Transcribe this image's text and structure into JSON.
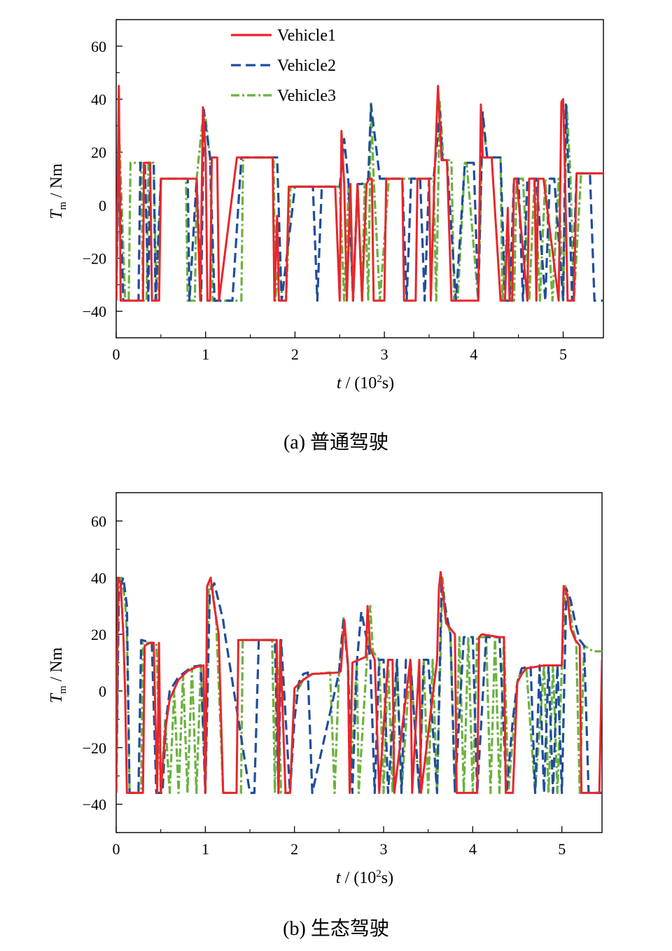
{
  "chart_data": [
    {
      "type": "line",
      "caption": "(a)  普通驾驶",
      "xlabel": {
        "var": "t",
        "unit": " / (10",
        "sup": "2",
        "tail": "s)"
      },
      "ylabel": {
        "var": "T",
        "sub": "m",
        "unit": " / Nm"
      },
      "xlim": [
        0,
        5.45
      ],
      "ylim": [
        -50,
        70
      ],
      "xticks": [
        0,
        1,
        2,
        3,
        4,
        5
      ],
      "xtick_labels": [
        "0",
        "1",
        "2",
        "3",
        "4",
        "5"
      ],
      "yticks": [
        -40,
        -20,
        0,
        20,
        40,
        60
      ],
      "ytick_labels": [
        "−40",
        "−20",
        "0",
        "20",
        "40",
        "60"
      ],
      "legend": [
        "Vehicle1",
        "Vehicle2",
        "Vehicle3"
      ],
      "series": [
        {
          "name": "Vehicle1",
          "color": "#e8262b",
          "dash": "solid",
          "x": [
            0,
            0.03,
            0.05,
            0.07,
            0.2,
            0.3,
            0.31,
            0.38,
            0.4,
            0.42,
            0.48,
            0.5,
            0.9,
            0.94,
            0.97,
            1.0,
            1.02,
            1.05,
            1.07,
            1.13,
            1.15,
            1.35,
            1.37,
            1.75,
            1.77,
            1.8,
            1.82,
            1.84,
            1.87,
            1.9,
            1.93,
            1.96,
            1.98,
            2.4,
            2.45,
            2.5,
            2.52,
            2.55,
            2.58,
            2.62,
            2.65,
            2.7,
            2.75,
            2.8,
            2.83,
            2.86,
            2.88,
            3.0,
            3.02,
            3.2,
            3.22,
            3.35,
            3.37,
            3.5,
            3.52,
            3.56,
            3.6,
            3.64,
            3.7,
            3.75,
            3.78,
            3.82,
            4.05,
            4.08,
            4.1,
            4.13,
            4.2,
            4.3,
            4.35,
            4.38,
            4.4,
            4.43,
            4.45,
            4.48,
            4.6,
            4.62,
            4.68,
            4.7,
            4.72,
            4.75,
            4.78,
            4.95,
            4.98,
            5.0,
            5.02,
            5.05,
            5.08,
            5.12,
            5.15,
            5.2,
            5.25,
            5.45
          ],
          "y": [
            -36,
            45,
            -36,
            -36,
            -36,
            -36,
            16,
            16,
            -36,
            -36,
            -36,
            10,
            10,
            -36,
            37,
            20,
            -36,
            -36,
            18,
            18,
            -36,
            18,
            18,
            18,
            -36,
            -4,
            -36,
            -36,
            -36,
            -36,
            7,
            7,
            7,
            7,
            7,
            -36,
            28,
            8,
            -36,
            8,
            -36,
            8,
            -36,
            8,
            10,
            10,
            -36,
            -36,
            10,
            10,
            -36,
            -36,
            10,
            10,
            -36,
            10,
            45,
            17,
            17,
            -36,
            -36,
            -36,
            -36,
            38,
            18,
            18,
            18,
            -36,
            -36,
            -1,
            -36,
            -36,
            10,
            10,
            -36,
            10,
            10,
            -36,
            10,
            10,
            10,
            -36,
            39,
            40,
            12,
            -36,
            -36,
            -36,
            12,
            12,
            12,
            12
          ]
        },
        {
          "name": "Vehicle2",
          "color": "#1f4e9c",
          "dash": "14,7",
          "x": [
            0,
            0.03,
            0.08,
            0.25,
            0.27,
            0.32,
            0.36,
            0.38,
            0.42,
            0.44,
            0.5,
            0.8,
            0.82,
            0.9,
            0.95,
            0.98,
            1.0,
            1.05,
            1.1,
            1.3,
            1.4,
            1.5,
            1.8,
            1.85,
            2.0,
            2.2,
            2.25,
            2.3,
            2.35,
            2.5,
            2.55,
            2.6,
            2.65,
            2.7,
            2.75,
            2.82,
            2.85,
            2.95,
            3.05,
            3.2,
            3.25,
            3.3,
            3.4,
            3.45,
            3.5,
            3.55,
            3.62,
            3.65,
            3.7,
            3.8,
            3.9,
            4.0,
            4.05,
            4.1,
            4.15,
            4.3,
            4.35,
            4.4,
            4.45,
            4.5,
            4.55,
            4.6,
            4.7,
            4.8,
            4.85,
            4.9,
            5.0,
            5.03,
            5.06,
            5.1,
            5.15,
            5.2,
            5.3,
            5.35,
            5.4,
            5.45
          ],
          "y": [
            -36,
            20,
            -36,
            -36,
            16,
            16,
            -36,
            16,
            16,
            -36,
            10,
            10,
            -36,
            10,
            -36,
            36,
            30,
            18,
            -36,
            -36,
            18,
            18,
            18,
            -36,
            7,
            7,
            -36,
            7,
            7,
            7,
            25,
            8,
            -36,
            8,
            8,
            10,
            38,
            10,
            10,
            10,
            -36,
            10,
            10,
            -36,
            10,
            10,
            35,
            17,
            17,
            -36,
            16,
            16,
            -36,
            35,
            18,
            18,
            -36,
            -36,
            10,
            10,
            -36,
            10,
            10,
            -36,
            10,
            10,
            -36,
            38,
            12,
            -36,
            12,
            12,
            12,
            -36,
            -36,
            -36
          ]
        },
        {
          "name": "Vehicle3",
          "color": "#6ab23e",
          "dash": "12,4,3,4",
          "x": [
            0,
            0.03,
            0.1,
            0.14,
            0.16,
            0.28,
            0.3,
            0.34,
            0.36,
            0.42,
            0.45,
            0.5,
            0.78,
            0.8,
            0.88,
            0.9,
            0.96,
            1.0,
            1.03,
            1.05,
            1.08,
            1.28,
            1.4,
            1.42,
            1.76,
            1.78,
            1.82,
            1.86,
            1.9,
            1.95,
            2.5,
            2.55,
            2.6,
            2.65,
            2.7,
            2.75,
            2.78,
            2.82,
            2.85,
            2.88,
            2.95,
            3.05,
            3.55,
            3.58,
            3.62,
            3.66,
            3.75,
            3.78,
            3.82,
            3.9,
            3.92,
            4.05,
            4.1,
            4.15,
            4.3,
            4.32,
            4.38,
            4.42,
            4.45,
            4.48,
            4.55,
            4.62,
            4.68,
            4.74,
            4.8,
            4.88,
            4.95,
            5.0,
            5.04,
            5.08,
            5.12,
            5.2,
            5.3,
            5.45
          ],
          "y": [
            -36,
            30,
            -36,
            -36,
            16,
            16,
            -36,
            -36,
            16,
            16,
            -36,
            10,
            10,
            -36,
            -36,
            10,
            30,
            33,
            24,
            18,
            -36,
            -36,
            -36,
            18,
            18,
            -36,
            -20,
            -36,
            -36,
            7,
            7,
            -36,
            7,
            -36,
            8,
            -36,
            8,
            -36,
            39,
            10,
            -36,
            10,
            10,
            -36,
            39,
            17,
            17,
            -36,
            -36,
            16,
            16,
            -36,
            32,
            18,
            18,
            -36,
            -5,
            -36,
            -36,
            10,
            10,
            -36,
            10,
            -36,
            10,
            -36,
            10,
            -36,
            38,
            12,
            -36,
            12,
            12,
            12
          ]
        }
      ]
    },
    {
      "type": "line",
      "caption": "(b)  生态驾驶",
      "xlabel": {
        "var": "t",
        "unit": " / (10",
        "sup": "2",
        "tail": "s)"
      },
      "ylabel": {
        "var": "T",
        "sub": "m",
        "unit": " / Nm"
      },
      "xlim": [
        0,
        5.45
      ],
      "ylim": [
        -50,
        70
      ],
      "xticks": [
        0,
        1,
        2,
        3,
        4,
        5
      ],
      "xtick_labels": [
        "0",
        "1",
        "2",
        "3",
        "4",
        "5"
      ],
      "yticks": [
        -40,
        -20,
        0,
        20,
        40,
        60
      ],
      "ytick_labels": [
        "−40",
        "−20",
        "0",
        "20",
        "40",
        "60"
      ],
      "legend": [],
      "series": [
        {
          "name": "Vehicle1",
          "color": "#e8262b",
          "dash": "solid",
          "x": [
            0,
            0.02,
            0.05,
            0.08,
            0.1,
            0.12,
            0.3,
            0.32,
            0.38,
            0.42,
            0.46,
            0.48,
            0.5,
            0.55,
            0.6,
            0.7,
            0.8,
            0.9,
            0.98,
            1.0,
            1.02,
            1.06,
            1.1,
            1.15,
            1.2,
            1.3,
            1.35,
            1.37,
            1.8,
            1.82,
            1.84,
            1.9,
            1.95,
            2.0,
            2.1,
            2.2,
            2.5,
            2.52,
            2.56,
            2.6,
            2.62,
            2.65,
            2.8,
            2.82,
            2.85,
            2.9,
            2.95,
            3.05,
            3.1,
            3.12,
            3.3,
            3.32,
            3.4,
            3.42,
            3.6,
            3.62,
            3.64,
            3.7,
            3.8,
            3.82,
            4.05,
            4.07,
            4.1,
            4.3,
            4.35,
            4.37,
            4.45,
            4.5,
            4.55,
            4.6,
            4.7,
            4.8,
            4.95,
            5.0,
            5.02,
            5.06,
            5.1,
            5.15,
            5.2,
            5.22,
            5.4,
            5.42,
            5.45
          ],
          "y": [
            -36,
            40,
            38,
            20,
            0,
            -36,
            -36,
            16,
            17,
            17,
            -36,
            17,
            -36,
            -14,
            -3,
            4,
            7,
            8.5,
            9,
            -36,
            37,
            40,
            30,
            20,
            -36,
            -36,
            -36,
            18,
            18,
            -36,
            18,
            -36,
            -36,
            1,
            4,
            6,
            6.5,
            7,
            25,
            9,
            -36,
            10,
            12,
            30,
            15,
            11,
            -36,
            11,
            11,
            -36,
            11,
            -36,
            11,
            -36,
            11,
            36,
            42,
            24,
            20,
            -36,
            -36,
            19,
            20,
            19,
            19,
            -36,
            -36,
            3,
            6,
            8,
            8.5,
            9,
            9,
            9,
            37,
            34,
            22,
            18,
            16,
            -36,
            -36,
            -36,
            11
          ]
        },
        {
          "name": "Vehicle2",
          "color": "#1f4e9c",
          "dash": "14,7",
          "x": [
            0,
            0.03,
            0.08,
            0.12,
            0.15,
            0.2,
            0.25,
            0.28,
            0.4,
            0.45,
            0.52,
            0.56,
            0.6,
            0.7,
            0.85,
            0.95,
            1.0,
            1.05,
            1.1,
            1.2,
            1.22,
            1.5,
            1.55,
            1.6,
            1.62,
            1.78,
            1.82,
            1.85,
            1.95,
            2.0,
            2.05,
            2.1,
            2.15,
            2.2,
            2.5,
            2.55,
            2.6,
            2.65,
            2.7,
            2.75,
            2.85,
            2.9,
            2.95,
            3.0,
            3.05,
            3.15,
            3.2,
            3.25,
            3.3,
            3.4,
            3.45,
            3.5,
            3.6,
            3.65,
            3.7,
            3.75,
            3.8,
            3.9,
            4.0,
            4.05,
            4.15,
            4.3,
            4.38,
            4.45,
            4.5,
            4.55,
            4.65,
            4.7,
            4.75,
            4.8,
            4.85,
            4.9,
            4.95,
            5.0,
            5.05,
            5.1,
            5.15,
            5.2,
            5.25,
            5.3,
            5.45
          ],
          "y": [
            -36,
            35,
            40,
            30,
            -36,
            -36,
            -36,
            18,
            17,
            -36,
            -36,
            -10,
            0,
            5,
            8.5,
            9,
            -36,
            35,
            38,
            25,
            20,
            -36,
            -36,
            18,
            18,
            18,
            -36,
            18,
            -36,
            -10,
            3,
            6,
            6.5,
            -36,
            6.5,
            25,
            9,
            -36,
            10,
            28,
            12,
            -36,
            11,
            11,
            -36,
            11,
            -36,
            11,
            11,
            -36,
            11,
            11,
            -36,
            38,
            28,
            20,
            -36,
            19,
            19,
            -36,
            19,
            19,
            -36,
            -10,
            3,
            8,
            8.5,
            -36,
            9,
            -36,
            9,
            -36,
            9,
            -36,
            36,
            32,
            24,
            18,
            16,
            -36,
            -36
          ]
        },
        {
          "name": "Vehicle3",
          "color": "#6ab23e",
          "dash": "12,4,3,4",
          "x": [
            0,
            0.03,
            0.06,
            0.1,
            0.12,
            0.15,
            0.28,
            0.3,
            0.45,
            0.5,
            0.55,
            0.6,
            0.65,
            0.7,
            0.75,
            0.8,
            0.85,
            0.9,
            0.95,
            1.0,
            1.04,
            1.08,
            1.12,
            1.2,
            1.25,
            1.4,
            1.42,
            1.75,
            1.78,
            1.8,
            1.85,
            1.95,
            2.0,
            2.1,
            2.2,
            2.4,
            2.45,
            2.5,
            2.55,
            2.6,
            2.62,
            2.7,
            2.72,
            2.85,
            2.88,
            2.95,
            3.0,
            3.05,
            3.1,
            3.15,
            3.2,
            3.3,
            3.4,
            3.45,
            3.5,
            3.55,
            3.6,
            3.66,
            3.7,
            3.75,
            3.8,
            3.85,
            3.9,
            3.95,
            4.0,
            4.05,
            4.15,
            4.2,
            4.25,
            4.3,
            4.35,
            4.4,
            4.5,
            4.55,
            4.6,
            4.7,
            4.8,
            4.85,
            4.9,
            4.95,
            5.0,
            5.04,
            5.08,
            5.12,
            5.16,
            5.2,
            5.25,
            5.3,
            5.35,
            5.45
          ],
          "y": [
            -36,
            38,
            40,
            32,
            20,
            -36,
            -36,
            17,
            17,
            -36,
            -10,
            -36,
            0,
            -36,
            6,
            -36,
            8,
            -36,
            9,
            -36,
            38,
            36,
            26,
            -36,
            -36,
            -36,
            18,
            18,
            -36,
            18,
            -36,
            -36,
            -2,
            4,
            6,
            6.5,
            -36,
            6.5,
            26,
            9,
            -36,
            10,
            -36,
            30,
            14,
            11,
            -36,
            11,
            -36,
            11,
            -36,
            11,
            -36,
            11,
            -36,
            11,
            -36,
            40,
            26,
            20,
            -36,
            19,
            -36,
            19,
            -36,
            19,
            19,
            -36,
            19,
            -36,
            19,
            -36,
            3,
            8,
            8.5,
            -36,
            9,
            -36,
            9,
            -36,
            9,
            37,
            32,
            22,
            18,
            -36,
            16,
            15,
            14,
            14
          ]
        }
      ]
    }
  ]
}
